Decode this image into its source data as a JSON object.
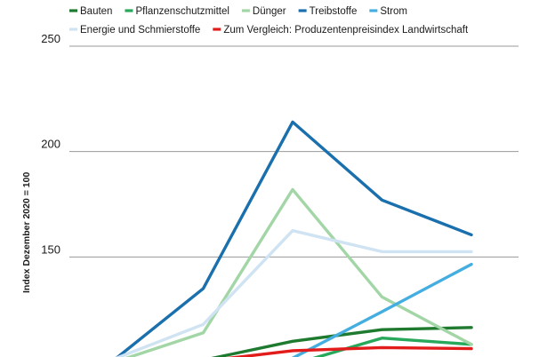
{
  "chart_data": {
    "type": "line",
    "title": "",
    "xlabel": "",
    "ylabel": "Index Dezember 2020 = 100",
    "ylim": [
      100,
      250
    ],
    "yticks": [
      150,
      200,
      250
    ],
    "grid": true,
    "legend_position": "top",
    "x": [
      0,
      1,
      2,
      3,
      4,
      5
    ],
    "series": [
      {
        "name": "Bauten",
        "color": "#1e7a2e",
        "values": [
          null,
          100.5,
          101.0,
          110.0,
          115.5,
          116.5
        ]
      },
      {
        "name": "Pflanzenschutzmittel",
        "color": "#27a85a",
        "values": [
          null,
          null,
          null,
          99.0,
          111.5,
          108.5
        ]
      },
      {
        "name": "Dünger",
        "color": "#a3d6a7",
        "values": [
          99.0,
          100.0,
          114.0,
          182.0,
          131.0,
          108.5
        ]
      },
      {
        "name": "Treibstoffe",
        "color": "#1a6fad",
        "values": [
          98.0,
          101.0,
          135.0,
          214.0,
          177.0,
          160.5
        ]
      },
      {
        "name": "Strom",
        "color": "#45aee0",
        "values": [
          null,
          null,
          null,
          102.0,
          124.0,
          146.5
        ]
      },
      {
        "name": "Energie und Schmierstoffe",
        "color": "#cfe3f3",
        "values": [
          98.5,
          101.5,
          118.0,
          162.5,
          152.5,
          152.5
        ]
      },
      {
        "name": "Zum Vergleich: Produzentenpreisindex Landwirtschaft",
        "color": "#e21b1b",
        "values": [
          null,
          99.5,
          100.5,
          105.5,
          107.0,
          106.5
        ]
      }
    ]
  }
}
